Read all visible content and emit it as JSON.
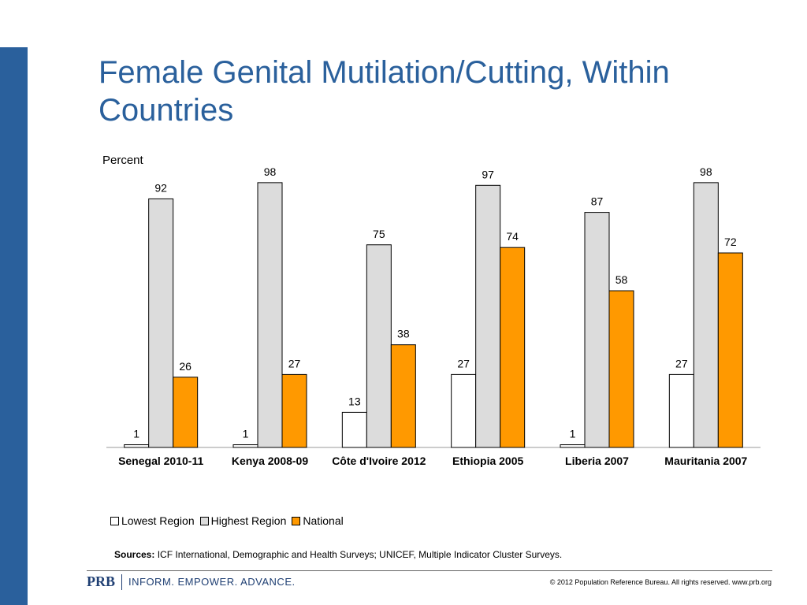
{
  "slide": {
    "title": "Female Genital Mutilation/Cutting, Within Countries",
    "axis_unit": "Percent",
    "sources_label": "Sources:",
    "sources_text": "ICF International, Demographic and Health Surveys; UNICEF, Multiple Indicator Cluster Surveys."
  },
  "footer": {
    "brand": "PRB",
    "tagline": "INFORM. EMPOWER. ADVANCE.",
    "copyright": "© 2012 Population Reference Bureau. All rights reserved. www.prb.org"
  },
  "colors": {
    "accent": "#2a609c",
    "lowest": "#ffffff",
    "highest": "#dcdcdc",
    "national": "#ff9900"
  },
  "chart_data": {
    "type": "bar",
    "title": "Female Genital Mutilation/Cutting, Within Countries",
    "ylabel": "Percent",
    "xlabel": "",
    "ylim": [
      0,
      100
    ],
    "legend_position": "bottom",
    "categories": [
      "Senegal 2010-11",
      "Kenya 2008-09",
      "Côte d'Ivoire 2012",
      "Ethiopia 2005",
      "Liberia 2007",
      "Mauritania 2007"
    ],
    "series": [
      {
        "name": "Lowest Region",
        "values": [
          1,
          1,
          13,
          27,
          1,
          27
        ]
      },
      {
        "name": "Highest Region",
        "values": [
          92,
          98,
          75,
          97,
          87,
          98
        ]
      },
      {
        "name": "National",
        "values": [
          26,
          27,
          38,
          74,
          58,
          72
        ]
      }
    ]
  }
}
